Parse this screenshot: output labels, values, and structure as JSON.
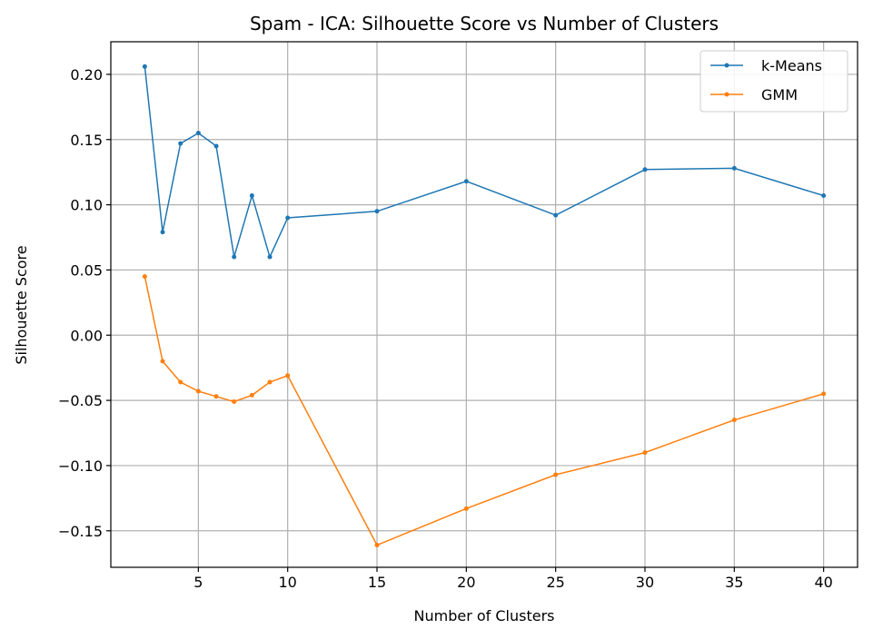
{
  "chart_data": {
    "type": "line",
    "title": "Spam - ICA: Silhouette Score vs Number of Clusters",
    "xlabel": "Number of Clusters",
    "ylabel": "Silhouette Score",
    "x": [
      2,
      3,
      4,
      5,
      6,
      7,
      8,
      9,
      10,
      15,
      20,
      25,
      30,
      35,
      40
    ],
    "xlim": [
      0.1,
      41.9
    ],
    "ylim": [
      -0.178,
      0.225
    ],
    "xticks": [
      5,
      10,
      15,
      20,
      25,
      30,
      35,
      40
    ],
    "xtick_labels": [
      "5",
      "10",
      "15",
      "20",
      "25",
      "30",
      "35",
      "40"
    ],
    "yticks": [
      0.2,
      0.15,
      0.1,
      0.05,
      0.0,
      -0.05,
      -0.1,
      -0.15
    ],
    "ytick_labels": [
      "0.20",
      "0.15",
      "0.10",
      "0.05",
      "0.00",
      "−0.05",
      "−0.10",
      "−0.15"
    ],
    "grid": true,
    "legend_position": "top-right",
    "series": [
      {
        "name": "k-Means",
        "color": "#1f77b4",
        "values": [
          0.206,
          0.079,
          0.147,
          0.155,
          0.145,
          0.06,
          0.107,
          0.06,
          0.09,
          0.095,
          0.118,
          0.092,
          0.127,
          0.128,
          0.107
        ]
      },
      {
        "name": "GMM",
        "color": "#ff7f0e",
        "values": [
          0.045,
          -0.02,
          -0.036,
          -0.043,
          -0.047,
          -0.051,
          -0.046,
          -0.036,
          -0.031,
          -0.161,
          -0.133,
          -0.107,
          -0.09,
          -0.065,
          -0.045
        ]
      }
    ]
  }
}
